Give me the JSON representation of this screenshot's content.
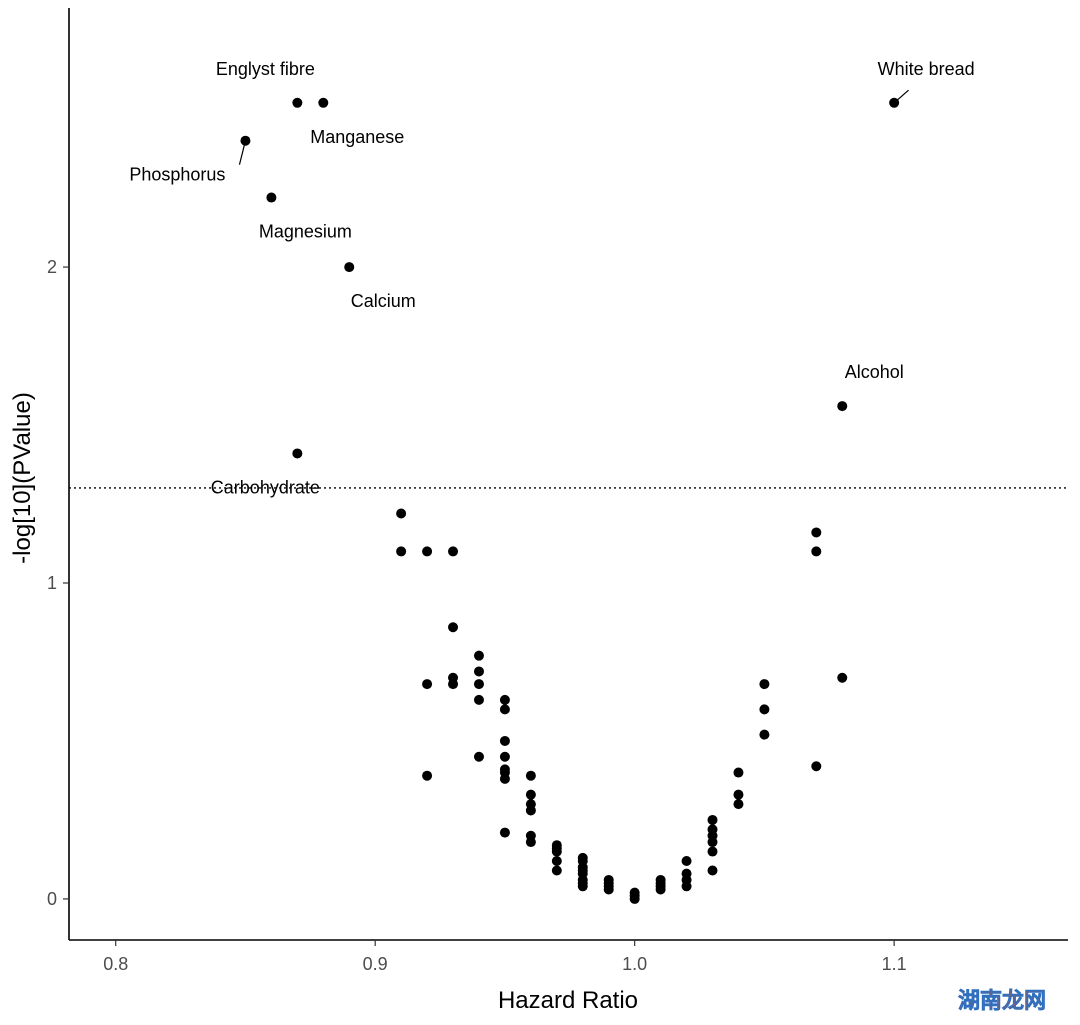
{
  "chart_data": {
    "type": "scatter",
    "title": "",
    "xlabel": "Hazard Ratio",
    "ylabel": "-log[10](PValue)",
    "xlim": [
      0.782,
      1.167
    ],
    "ylim": [
      -0.13,
      2.82
    ],
    "x_ticks": [
      {
        "value": 0.8,
        "label": "0.8"
      },
      {
        "value": 0.9,
        "label": "0.9"
      },
      {
        "value": 1.0,
        "label": "1.0"
      },
      {
        "value": 1.1,
        "label": "1.1"
      }
    ],
    "y_ticks": [
      {
        "value": 0,
        "label": "0"
      },
      {
        "value": 1,
        "label": "1"
      },
      {
        "value": 2,
        "label": "2"
      }
    ],
    "grid": false,
    "legend": "none",
    "reference_line": {
      "y": 1.301,
      "style": "dotted"
    },
    "labels": [
      {
        "text": "Englyst fibre",
        "x": 0.87,
        "y": 2.52
      },
      {
        "text": "Manganese",
        "x": 0.88,
        "y": 2.52
      },
      {
        "text": "Phosphorus",
        "x": 0.85,
        "y": 2.4
      },
      {
        "text": "Magnesium",
        "x": 0.86,
        "y": 2.22
      },
      {
        "text": "Calcium",
        "x": 0.89,
        "y": 2.0
      },
      {
        "text": "White bread",
        "x": 1.1,
        "y": 2.52
      },
      {
        "text": "Alcohol",
        "x": 1.08,
        "y": 1.56
      },
      {
        "text": "Carbohydrate",
        "x": 0.87,
        "y": 1.41
      }
    ],
    "points": [
      [
        0.87,
        2.52
      ],
      [
        0.88,
        2.52
      ],
      [
        0.85,
        2.4
      ],
      [
        0.86,
        2.22
      ],
      [
        0.89,
        2.0
      ],
      [
        1.1,
        2.52
      ],
      [
        1.08,
        1.56
      ],
      [
        0.87,
        1.41
      ],
      [
        0.91,
        1.22
      ],
      [
        0.91,
        1.1
      ],
      [
        0.92,
        1.1
      ],
      [
        0.93,
        1.1
      ],
      [
        0.93,
        0.86
      ],
      [
        0.92,
        0.68
      ],
      [
        0.92,
        0.39
      ],
      [
        0.93,
        0.68
      ],
      [
        0.93,
        0.7
      ],
      [
        0.94,
        0.77
      ],
      [
        0.94,
        0.72
      ],
      [
        0.94,
        0.68
      ],
      [
        0.94,
        0.63
      ],
      [
        0.94,
        0.45
      ],
      [
        0.95,
        0.63
      ],
      [
        0.95,
        0.6
      ],
      [
        0.95,
        0.5
      ],
      [
        0.95,
        0.45
      ],
      [
        0.95,
        0.41
      ],
      [
        0.95,
        0.4
      ],
      [
        0.95,
        0.38
      ],
      [
        0.95,
        0.21
      ],
      [
        0.96,
        0.39
      ],
      [
        0.96,
        0.33
      ],
      [
        0.96,
        0.3
      ],
      [
        0.96,
        0.28
      ],
      [
        0.96,
        0.2
      ],
      [
        0.96,
        0.18
      ],
      [
        0.97,
        0.17
      ],
      [
        0.97,
        0.16
      ],
      [
        0.97,
        0.15
      ],
      [
        0.97,
        0.12
      ],
      [
        0.97,
        0.09
      ],
      [
        0.98,
        0.13
      ],
      [
        0.98,
        0.12
      ],
      [
        0.98,
        0.1
      ],
      [
        0.98,
        0.09
      ],
      [
        0.98,
        0.08
      ],
      [
        0.98,
        0.06
      ],
      [
        0.98,
        0.05
      ],
      [
        0.98,
        0.04
      ],
      [
        0.99,
        0.06
      ],
      [
        0.99,
        0.05
      ],
      [
        0.99,
        0.04
      ],
      [
        0.99,
        0.03
      ],
      [
        1.0,
        0.02
      ],
      [
        1.0,
        0.01
      ],
      [
        1.0,
        0.0
      ],
      [
        1.01,
        0.06
      ],
      [
        1.01,
        0.05
      ],
      [
        1.01,
        0.04
      ],
      [
        1.01,
        0.03
      ],
      [
        1.02,
        0.12
      ],
      [
        1.02,
        0.08
      ],
      [
        1.02,
        0.06
      ],
      [
        1.02,
        0.04
      ],
      [
        1.03,
        0.25
      ],
      [
        1.03,
        0.22
      ],
      [
        1.03,
        0.2
      ],
      [
        1.03,
        0.18
      ],
      [
        1.03,
        0.15
      ],
      [
        1.03,
        0.09
      ],
      [
        1.04,
        0.4
      ],
      [
        1.04,
        0.33
      ],
      [
        1.04,
        0.3
      ],
      [
        1.05,
        0.68
      ],
      [
        1.05,
        0.6
      ],
      [
        1.05,
        0.52
      ],
      [
        1.07,
        1.16
      ],
      [
        1.07,
        1.1
      ],
      [
        1.07,
        0.42
      ],
      [
        1.08,
        0.7
      ]
    ]
  },
  "watermark": {
    "text": "湖南龙网",
    "color_primary": "#e8501f",
    "color_secondary": "#2f6fbf"
  }
}
